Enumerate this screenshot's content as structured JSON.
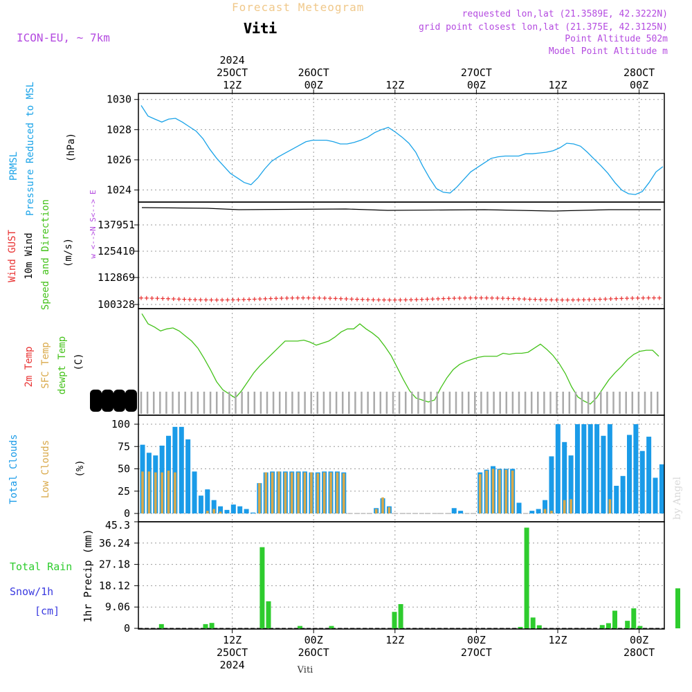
{
  "header": {
    "title": "Forecast Meteogram",
    "location": "Viti",
    "model": "ICON-EU, ~ 7km",
    "requested": "requested lon,lat (21.3589E, 42.3222N)",
    "gridpoint": "grid point closest lon,lat (21.375E, 42.3125N)",
    "point_alt": "Point Altitude 502m",
    "model_alt": "Model Point Altitude m",
    "watermark": "by Angel",
    "footer": "Viti"
  },
  "colors": {
    "pressure": "#1aa3e8",
    "temp": "#44c21a",
    "clouds_total": "#1a9be8",
    "clouds_low": "#d9a94a",
    "rain": "#2ecc2e",
    "gust": "#e83030",
    "purple": "#b44be0",
    "snow": "#3a3ae0"
  },
  "time_axis": {
    "top": [
      {
        "h": 12,
        "lines": [
          "2024",
          "25OCT",
          "12Z"
        ]
      },
      {
        "h": 24,
        "lines": [
          "26OCT",
          "00Z"
        ]
      },
      {
        "h": 36,
        "lines": [
          "12Z"
        ]
      },
      {
        "h": 48,
        "lines": [
          "27OCT",
          "00Z"
        ]
      },
      {
        "h": 60,
        "lines": [
          "12Z"
        ]
      },
      {
        "h": 72,
        "lines": [
          "28OCT",
          "00Z"
        ]
      }
    ],
    "bottom": [
      {
        "h": 12,
        "lines": [
          "12Z",
          "25OCT",
          "2024"
        ]
      },
      {
        "h": 24,
        "lines": [
          "00Z",
          "26OCT"
        ]
      },
      {
        "h": 36,
        "lines": [
          "12Z"
        ]
      },
      {
        "h": 48,
        "lines": [
          "00Z",
          "27OCT"
        ]
      },
      {
        "h": 60,
        "lines": [
          "12Z"
        ]
      },
      {
        "h": 72,
        "lines": [
          "00Z",
          "28OCT"
        ]
      }
    ]
  },
  "panel_labels": {
    "pressure": {
      "a": "PRMSL",
      "b": "Pressure Reduced to MSL",
      "unit": "(hPa)"
    },
    "wind": {
      "gust": "Wind GUST",
      "wind": "10m Wind",
      "dir": "Speed and Direction",
      "unit": "(m/s)",
      "compass": "w <-->N S<--> E"
    },
    "temp": {
      "t2m": "2m Temp",
      "sfc": "SFC Temp",
      "dew": "dewpt Temp",
      "unit": "(C)"
    },
    "clouds": {
      "total": "Total Clouds",
      "low": "Low Clouds",
      "unit": "(%)"
    },
    "precip": {
      "rain": "Total  Rain",
      "snow": "Snow/1h",
      "cm": "[cm]",
      "unit": "1hr Precip (mm)"
    }
  },
  "chart_data": [
    {
      "type": "line",
      "name": "pressure",
      "ylabel": "(hPa)",
      "ylim": [
        1023.2,
        1030.4
      ],
      "yticks": [
        1024,
        1026,
        1028,
        1030
      ],
      "x": [
        0,
        1,
        2,
        3,
        4,
        5,
        6,
        7,
        8,
        9,
        10,
        11,
        12,
        13,
        14,
        15,
        16,
        17,
        18,
        19,
        20,
        21,
        22,
        23,
        24,
        25,
        26,
        27,
        28,
        29,
        30,
        31,
        32,
        33,
        34,
        35,
        36,
        37,
        38,
        39,
        40,
        41,
        42,
        43,
        44,
        45,
        46,
        47,
        48,
        49,
        50,
        51,
        52,
        53,
        54,
        55,
        56,
        57,
        58,
        59,
        60,
        61,
        62,
        63,
        64,
        65,
        66,
        67,
        68,
        69,
        70,
        71,
        72,
        73,
        74,
        75,
        76
      ],
      "y": [
        1029.6,
        1028.9,
        1028.7,
        1028.5,
        1028.7,
        1028.75,
        1028.5,
        1028.2,
        1027.9,
        1027.4,
        1026.7,
        1026.1,
        1025.6,
        1025.1,
        1024.8,
        1024.5,
        1024.35,
        1024.8,
        1025.4,
        1025.9,
        1026.2,
        1026.45,
        1026.7,
        1026.95,
        1027.2,
        1027.3,
        1027.3,
        1027.3,
        1027.2,
        1027.05,
        1027.05,
        1027.15,
        1027.3,
        1027.5,
        1027.8,
        1028.0,
        1028.15,
        1027.85,
        1027.5,
        1027.1,
        1026.5,
        1025.6,
        1024.8,
        1024.1,
        1023.85,
        1023.8,
        1024.2,
        1024.7,
        1025.2,
        1025.5,
        1025.8,
        1026.1,
        1026.2,
        1026.25,
        1026.25,
        1026.25,
        1026.4,
        1026.4,
        1026.45,
        1026.5,
        1026.6,
        1026.8,
        1027.1,
        1027.05,
        1026.9,
        1026.5,
        1026.05,
        1025.6,
        1025.1,
        1024.5,
        1024.0,
        1023.75,
        1023.7,
        1023.9,
        1024.5,
        1025.2,
        1025.55
      ]
    },
    {
      "type": "line",
      "name": "wind",
      "ylabel": "(m/s)",
      "yticks": [
        100328,
        112869,
        125410,
        137951
      ],
      "note": "flat 10m wind line and gust markers"
    },
    {
      "type": "line",
      "name": "temperature",
      "ylabel": "(C)",
      "y": [
        12.5,
        11.5,
        11.2,
        10.8,
        11.0,
        11.1,
        10.8,
        10.3,
        9.8,
        9.1,
        8.1,
        7.0,
        5.8,
        5.0,
        4.6,
        4.2,
        4.9,
        5.8,
        6.7,
        7.4,
        8.0,
        8.6,
        9.2,
        9.8,
        9.8,
        9.8,
        9.9,
        9.7,
        9.4,
        9.6,
        9.8,
        10.2,
        10.7,
        11.0,
        11.0,
        11.5,
        11.0,
        10.6,
        10.1,
        9.3,
        8.4,
        7.2,
        6.0,
        4.9,
        4.2,
        4.0,
        3.8,
        4.0,
        5.2,
        6.2,
        7.0,
        7.5,
        7.8,
        8.0,
        8.2,
        8.3,
        8.3,
        8.3,
        8.6,
        8.5,
        8.6,
        8.6,
        8.7,
        9.1,
        9.5,
        9.0,
        8.4,
        7.6,
        6.6,
        5.3,
        4.3,
        3.9,
        3.6,
        4.2,
        5.1,
        6.0,
        6.7,
        7.3,
        8.0,
        8.5,
        8.8,
        8.9,
        8.9,
        8.3
      ]
    },
    {
      "type": "bar",
      "name": "clouds",
      "ylabel": "(%)",
      "ylim": [
        0,
        100
      ],
      "yticks": [
        0,
        25,
        50,
        75,
        100
      ],
      "series": [
        {
          "name": "Total Clouds",
          "values": [
            77,
            68,
            65,
            76,
            87,
            97,
            97,
            83,
            47,
            20,
            27,
            15,
            8,
            4,
            10,
            8,
            5,
            1,
            34,
            46,
            47,
            47,
            47,
            47,
            47,
            47,
            46,
            46,
            47,
            47,
            47,
            46,
            0,
            0,
            0,
            0,
            6,
            17,
            8,
            0,
            0,
            0,
            0,
            0,
            0,
            0,
            0,
            0,
            6,
            3,
            0,
            0,
            46,
            49,
            53,
            50,
            50,
            50,
            12,
            0,
            3,
            5,
            15,
            64,
            100,
            80,
            65,
            100,
            100,
            100,
            100,
            87,
            100,
            31,
            42,
            88,
            100,
            70,
            86,
            40,
            55
          ]
        },
        {
          "name": "Low Clouds",
          "values": [
            47,
            47,
            46,
            46,
            48,
            46,
            0,
            0,
            0,
            0,
            3,
            5,
            2,
            0,
            0,
            0,
            0,
            0,
            34,
            46,
            46,
            47,
            46,
            46,
            46,
            46,
            46,
            45,
            46,
            46,
            46,
            45,
            0,
            0,
            0,
            0,
            5,
            18,
            7,
            0,
            0,
            0,
            0,
            0,
            0,
            0,
            0,
            0,
            0,
            0,
            0,
            0,
            44,
            48,
            50,
            49,
            49,
            48,
            0,
            0,
            0,
            0,
            5,
            3,
            0,
            15,
            16,
            0,
            0,
            0,
            0,
            0,
            16,
            0,
            0,
            0,
            0,
            0,
            0,
            0,
            0
          ]
        }
      ]
    },
    {
      "type": "bar",
      "name": "precipitation",
      "ylabel": "1hr Precip (mm)",
      "ylim": [
        0,
        45.3
      ],
      "yticks": [
        0,
        9.06,
        18.12,
        27.18,
        36.24,
        45.3
      ],
      "series": [
        {
          "name": "Total Rain",
          "values": [
            0,
            0,
            0,
            1.8,
            0,
            0,
            0,
            0,
            0,
            0,
            1.8,
            2.3,
            0,
            0,
            0,
            0,
            0,
            0,
            0,
            34.5,
            11.5,
            0,
            0,
            0,
            0,
            1.0,
            0,
            0,
            0,
            0,
            1.0,
            0,
            0,
            0,
            0,
            0,
            0,
            0,
            0,
            0,
            7.0,
            10.3,
            0,
            0,
            0,
            0,
            0,
            0,
            0,
            0,
            0,
            0,
            0,
            0,
            0,
            0,
            0,
            0,
            0,
            0,
            0.6,
            42.8,
            4.6,
            1.3,
            0,
            0,
            0,
            0,
            0,
            0,
            0,
            0,
            0,
            1.4,
            2.2,
            7.5,
            0,
            3.2,
            8.5,
            1.0,
            0,
            0,
            0,
            0,
            0,
            17.0,
            0,
            0,
            0,
            0,
            0
          ]
        }
      ]
    }
  ]
}
